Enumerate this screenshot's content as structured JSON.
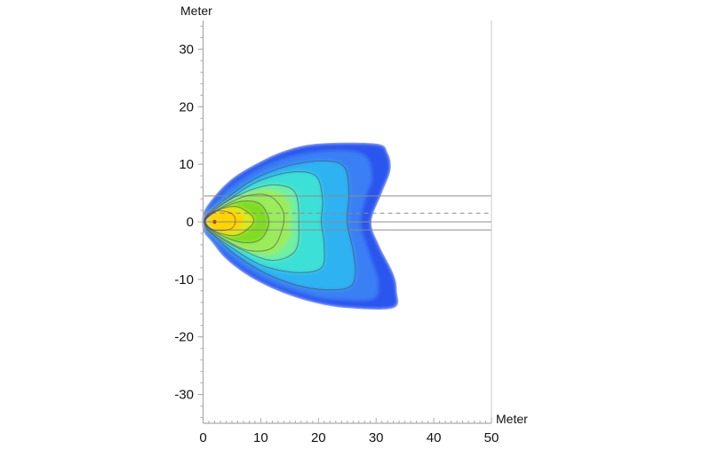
{
  "chart_data": {
    "type": "heatmap",
    "title": "",
    "xlabel": "Meter",
    "ylabel": "Meter",
    "xlim": [
      0,
      50
    ],
    "ylim": [
      -35,
      35
    ],
    "xticks": [
      0,
      10,
      20,
      30,
      40,
      50
    ],
    "yticks": [
      -30,
      -20,
      -10,
      0,
      10,
      20,
      30
    ],
    "grid": false,
    "colorscale": [
      "#2c55ee",
      "#3b7ff5",
      "#2fb2f2",
      "#3ee0d6",
      "#6ff0a2",
      "#9bec5c",
      "#7fdc22",
      "#d8ec1c",
      "#ffd400",
      "#ff9300",
      "#f2400c"
    ],
    "outer_boundary": [
      [
        0,
        1.5
      ],
      [
        2,
        4.5
      ],
      [
        5,
        7.5
      ],
      [
        9,
        10
      ],
      [
        14,
        12.3
      ],
      [
        20,
        13.6
      ],
      [
        30,
        13.6
      ],
      [
        32,
        12
      ],
      [
        32.5,
        9
      ],
      [
        31,
        5
      ],
      [
        29.2,
        0
      ],
      [
        30.5,
        -4
      ],
      [
        33,
        -9
      ],
      [
        33.6,
        -12
      ],
      [
        33,
        -15
      ],
      [
        25,
        -15
      ],
      [
        19,
        -14
      ],
      [
        13,
        -12
      ],
      [
        8,
        -9.5
      ],
      [
        4,
        -6.5
      ],
      [
        1.5,
        -3.5
      ],
      [
        0,
        -1.5
      ]
    ],
    "contours": [
      [
        [
          0.5,
          1
        ],
        [
          4,
          4
        ],
        [
          9,
          7.5
        ],
        [
          15,
          9.8
        ],
        [
          21,
          10.6
        ],
        [
          24.5,
          9.5
        ],
        [
          25.3,
          5
        ],
        [
          25,
          0
        ],
        [
          26,
          -5
        ],
        [
          26.4,
          -9
        ],
        [
          25,
          -11.5
        ],
        [
          19,
          -11.6
        ],
        [
          12,
          -9.5
        ],
        [
          6,
          -6
        ],
        [
          2,
          -2.5
        ],
        [
          0.5,
          -1
        ]
      ],
      [
        [
          0.5,
          0.8
        ],
        [
          4,
          3.5
        ],
        [
          9,
          6.8
        ],
        [
          15,
          8.6
        ],
        [
          19.5,
          8
        ],
        [
          20.7,
          4
        ],
        [
          20.5,
          0
        ],
        [
          21,
          -4
        ],
        [
          20.5,
          -8
        ],
        [
          16,
          -8.8
        ],
        [
          10,
          -7.5
        ],
        [
          5,
          -4.5
        ],
        [
          1.5,
          -2
        ],
        [
          0.5,
          -0.8
        ]
      ],
      [
        [
          0.6,
          0.8
        ],
        [
          4,
          3.5
        ],
        [
          9,
          5.8
        ],
        [
          13,
          6.4
        ],
        [
          16,
          5
        ],
        [
          16.6,
          0
        ],
        [
          16,
          -5
        ],
        [
          12,
          -6.7
        ],
        [
          7,
          -5
        ],
        [
          3,
          -2.8
        ],
        [
          0.6,
          -0.8
        ]
      ],
      [
        [
          0.6,
          0.7
        ],
        [
          4,
          3
        ],
        [
          8,
          4.6
        ],
        [
          11.5,
          4.5
        ],
        [
          13.8,
          2
        ],
        [
          13.8,
          -1
        ],
        [
          12,
          -4.5
        ],
        [
          8,
          -5
        ],
        [
          4,
          -3.2
        ],
        [
          0.6,
          -0.7
        ]
      ],
      [
        [
          0.6,
          0.6
        ],
        [
          3.5,
          2.5
        ],
        [
          7,
          3.6
        ],
        [
          10,
          3
        ],
        [
          11.4,
          0
        ],
        [
          10,
          -3
        ],
        [
          7,
          -3.6
        ],
        [
          3.5,
          -2.5
        ],
        [
          0.6,
          -0.6
        ]
      ],
      [
        [
          0.6,
          0.6
        ],
        [
          3,
          2.2
        ],
        [
          6,
          2.6
        ],
        [
          8.5,
          1
        ],
        [
          8.5,
          -0.5
        ],
        [
          6,
          -2.3
        ],
        [
          3,
          -2
        ],
        [
          0.6,
          -0.6
        ]
      ],
      [
        [
          0.4,
          0.2
        ],
        [
          1.2,
          1.5
        ],
        [
          3,
          1.9
        ],
        [
          5,
          1.4
        ],
        [
          5.6,
          0.2
        ],
        [
          5,
          -1.1
        ],
        [
          3,
          -1.5
        ],
        [
          1.2,
          -1.1
        ]
      ]
    ],
    "peak": [
      2,
      0
    ],
    "reference_lines": [
      {
        "y": 4.5,
        "style": "solid"
      },
      {
        "y": 1.5,
        "style": "dashed"
      },
      {
        "y": 0,
        "style": "solid"
      },
      {
        "y": -1.4,
        "style": "solid"
      }
    ]
  }
}
